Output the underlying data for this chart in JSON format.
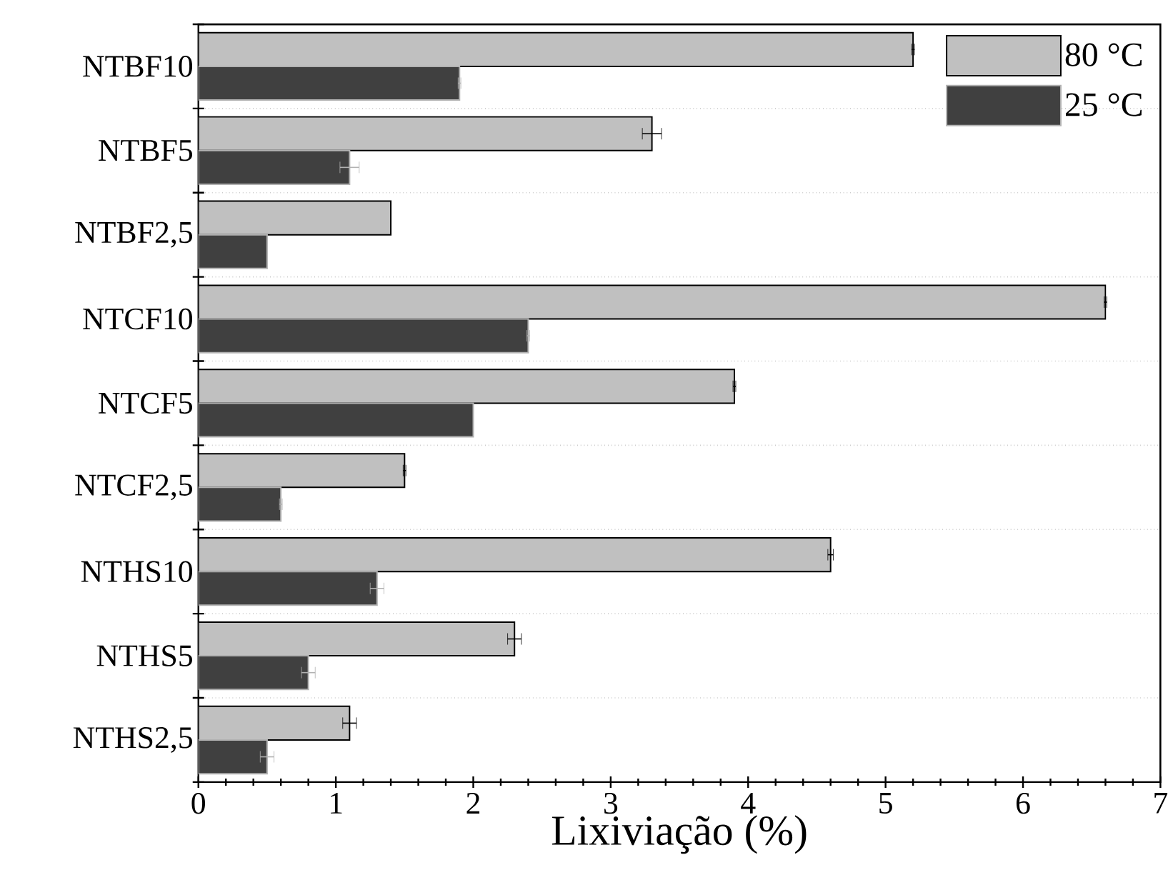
{
  "chart_data": {
    "type": "bar",
    "orientation": "horizontal",
    "xlabel": "Lixiviação (%)",
    "categories": [
      "NTBF10",
      "NTBF5",
      "NTBF2,5",
      "NTCF10",
      "NTCF5",
      "NTCF2,5",
      "NTHS10",
      "NTHS5",
      "NTHS2,5"
    ],
    "series": [
      {
        "name": "80 °C",
        "color": "#c0c0c0",
        "values": [
          5.2,
          3.3,
          1.4,
          6.6,
          3.9,
          1.5,
          4.6,
          2.3,
          1.1
        ],
        "errors": [
          0.01,
          0.07,
          null,
          0.01,
          0.01,
          0.01,
          0.02,
          0.05,
          0.05
        ]
      },
      {
        "name": "25 °C",
        "color": "#404040",
        "values": [
          1.9,
          1.1,
          0.5,
          2.4,
          2.0,
          0.6,
          1.3,
          0.8,
          0.5
        ],
        "errors": [
          0.01,
          0.07,
          null,
          0.01,
          null,
          0.01,
          0.05,
          0.05,
          0.05
        ]
      }
    ],
    "xlim": [
      0,
      7
    ],
    "xticks": [
      0,
      1,
      2,
      3,
      4,
      5,
      6,
      7
    ],
    "grid": "y",
    "legend": "top right"
  }
}
